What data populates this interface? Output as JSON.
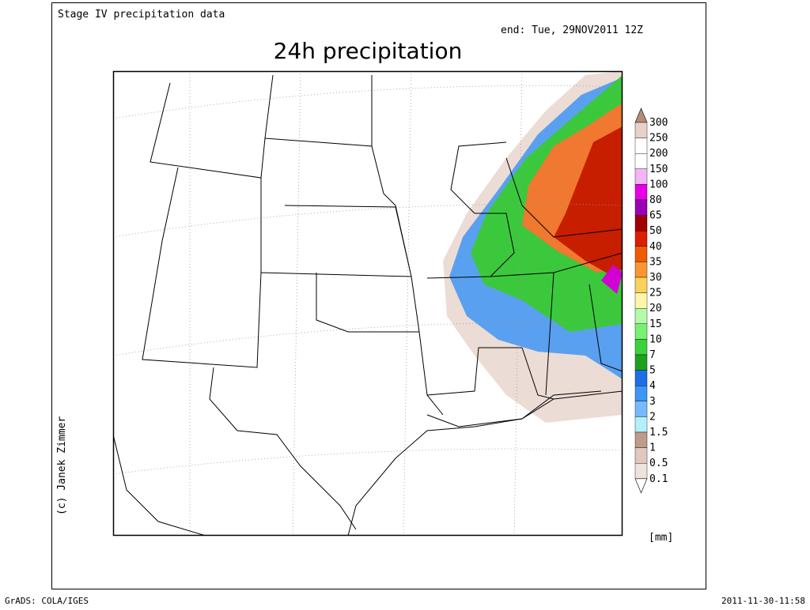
{
  "header": {
    "source": "Stage IV precipitation data",
    "end": "end: Tue, 29NOV2011 12Z",
    "title": "24h precipitation"
  },
  "colorbar": {
    "labels": [
      "300",
      "250",
      "200",
      "150",
      "100",
      "80",
      "65",
      "50",
      "40",
      "35",
      "30",
      "25",
      "20",
      "15",
      "10",
      "7",
      "5",
      "4",
      "3",
      "2",
      "1.5",
      "1",
      "0.5",
      "0.1"
    ],
    "colors": [
      "#e6d2c8",
      "#ffffff",
      "#ffffff",
      "#f5b4f5",
      "#e600e6",
      "#9a00b4",
      "#a00000",
      "#dc1e00",
      "#f05a00",
      "#fa9632",
      "#fad25a",
      "#fff5aa",
      "#b4faaa",
      "#78f073",
      "#37d23c",
      "#1ea01e",
      "#1e6ee6",
      "#3c96f5",
      "#78b9fa",
      "#b4f0fa",
      "#c09a8a",
      "#e0c8be",
      "#f0e2dc"
    ],
    "over_color": "#b48c78",
    "under_color": "#ffffff",
    "last_color": "#faf0ec",
    "unit": "[mm]"
  },
  "credit": "(c) Janek Zimmer",
  "footer": {
    "left": "GrADS: COLA/IGES",
    "right": "2011-11-30-11:58"
  }
}
